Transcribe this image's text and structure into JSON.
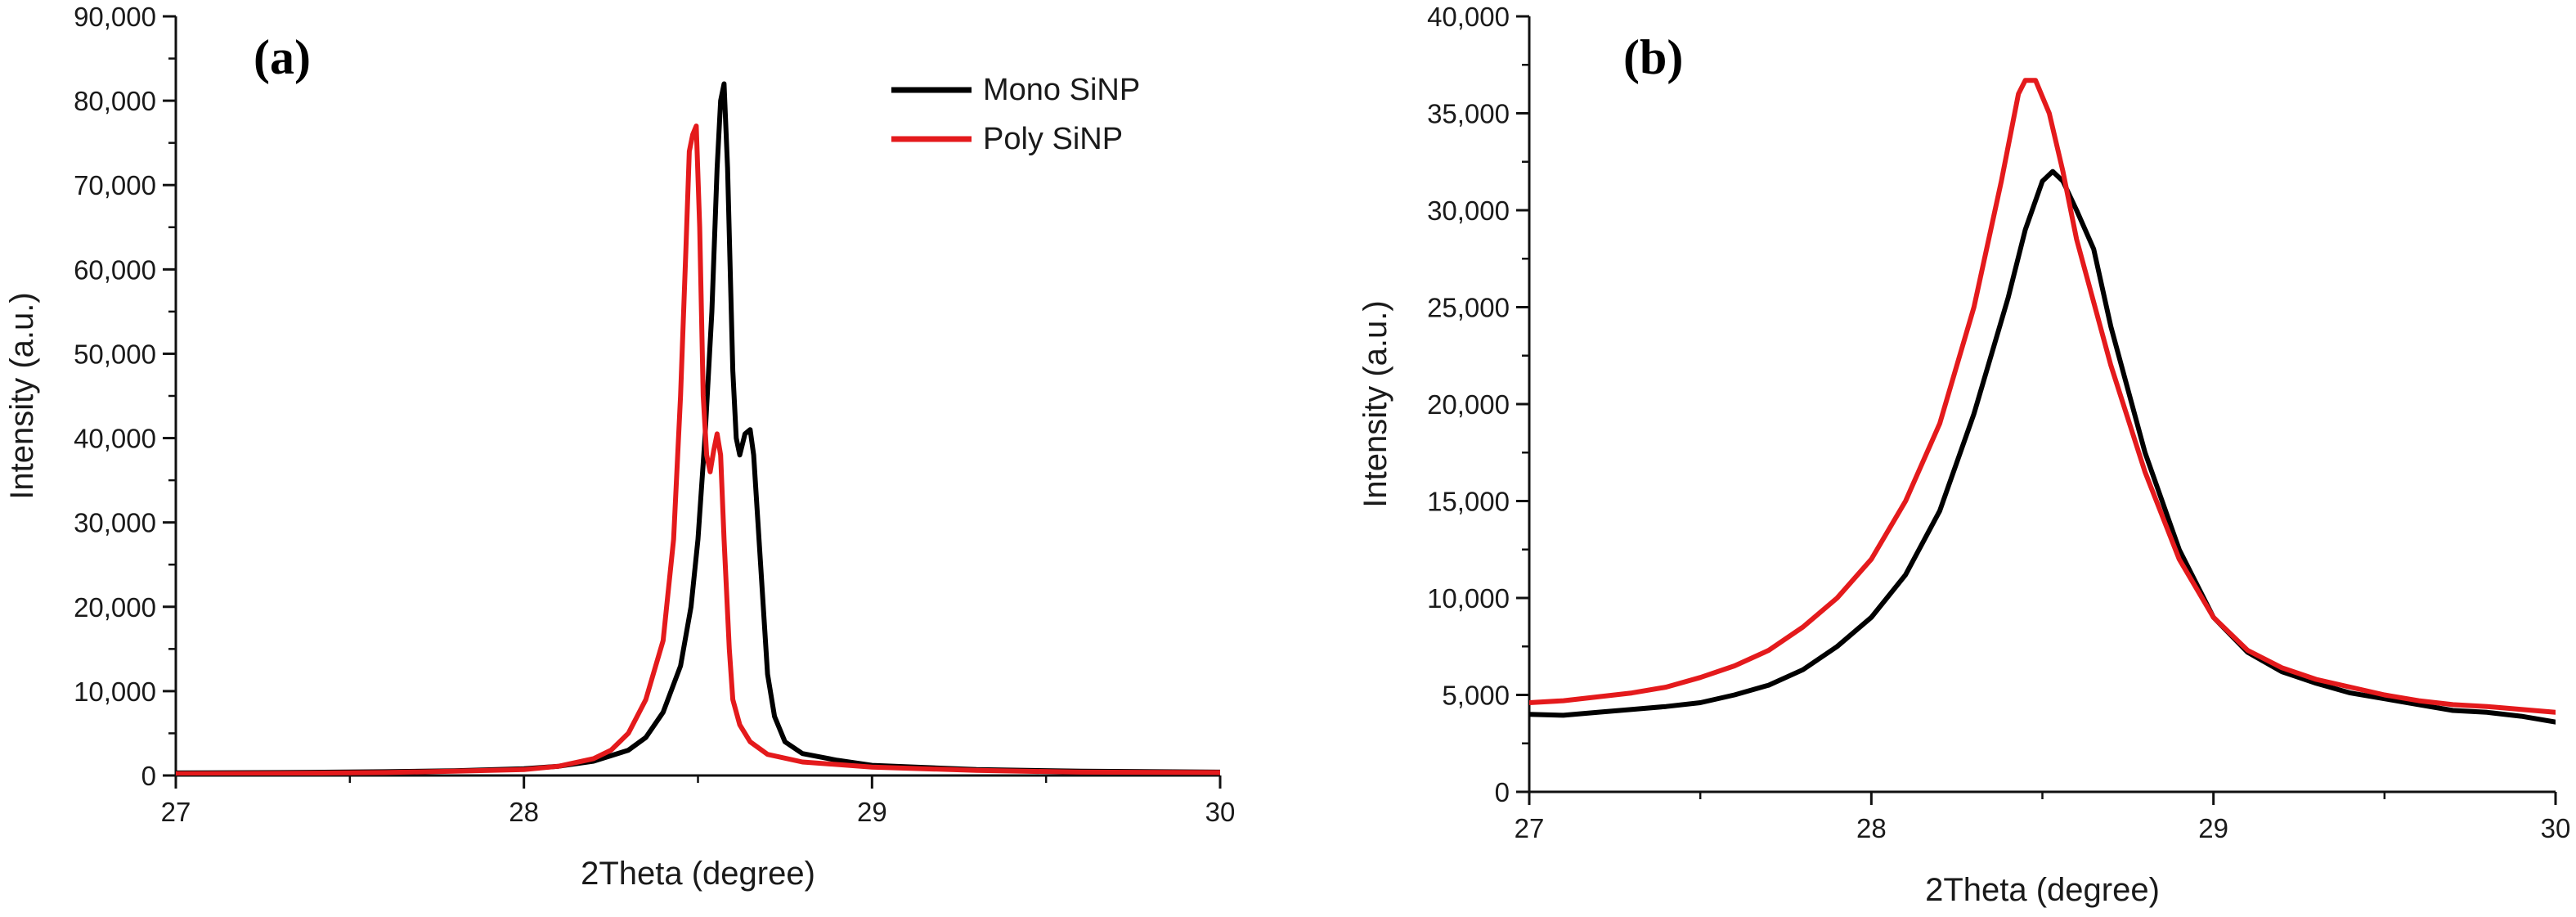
{
  "chart_data": [
    {
      "panel_label": "(a)",
      "type": "line",
      "xlabel": "2Theta (degree)",
      "ylabel": "Intensity (a.u.)",
      "xlim": [
        27,
        30
      ],
      "ylim": [
        0,
        90000
      ],
      "x_ticks": [
        "27",
        "28",
        "29",
        "30"
      ],
      "y_ticks": [
        "0",
        "10,000",
        "20,000",
        "30,000",
        "40,000",
        "50,000",
        "60,000",
        "70,000",
        "80,000",
        "90,000"
      ],
      "legend": {
        "placement": "top-right",
        "entries": [
          "Mono SiNP",
          "Poly SiNP"
        ]
      },
      "grid": false,
      "series": [
        {
          "name": "Mono SiNP",
          "color": "#000000",
          "points": [
            [
              27.0,
              300
            ],
            [
              27.3,
              350
            ],
            [
              27.6,
              450
            ],
            [
              27.8,
              550
            ],
            [
              28.0,
              800
            ],
            [
              28.1,
              1100
            ],
            [
              28.2,
              1700
            ],
            [
              28.3,
              3000
            ],
            [
              28.35,
              4500
            ],
            [
              28.4,
              7500
            ],
            [
              28.45,
              13000
            ],
            [
              28.48,
              20000
            ],
            [
              28.5,
              28000
            ],
            [
              28.52,
              40000
            ],
            [
              28.54,
              55000
            ],
            [
              28.555,
              72000
            ],
            [
              28.565,
              80000
            ],
            [
              28.575,
              82000
            ],
            [
              28.585,
              72000
            ],
            [
              28.6,
              48000
            ],
            [
              28.61,
              40000
            ],
            [
              28.62,
              38000
            ],
            [
              28.635,
              40500
            ],
            [
              28.65,
              41000
            ],
            [
              28.66,
              38000
            ],
            [
              28.68,
              25000
            ],
            [
              28.7,
              12000
            ],
            [
              28.72,
              7000
            ],
            [
              28.75,
              4000
            ],
            [
              28.8,
              2600
            ],
            [
              28.9,
              1800
            ],
            [
              29.0,
              1200
            ],
            [
              29.3,
              700
            ],
            [
              29.6,
              500
            ],
            [
              30.0,
              400
            ]
          ]
        },
        {
          "name": "Poly SiNP",
          "color": "#e41a1c",
          "points": [
            [
              27.0,
              200
            ],
            [
              27.3,
              250
            ],
            [
              27.6,
              350
            ],
            [
              27.8,
              500
            ],
            [
              28.0,
              700
            ],
            [
              28.1,
              1100
            ],
            [
              28.2,
              2000
            ],
            [
              28.25,
              3000
            ],
            [
              28.3,
              5000
            ],
            [
              28.35,
              9000
            ],
            [
              28.4,
              16000
            ],
            [
              28.43,
              28000
            ],
            [
              28.45,
              45000
            ],
            [
              28.465,
              62000
            ],
            [
              28.475,
              74000
            ],
            [
              28.485,
              76000
            ],
            [
              28.495,
              77000
            ],
            [
              28.505,
              65000
            ],
            [
              28.515,
              45000
            ],
            [
              28.525,
              38000
            ],
            [
              28.535,
              36000
            ],
            [
              28.545,
              38500
            ],
            [
              28.555,
              40500
            ],
            [
              28.565,
              38000
            ],
            [
              28.575,
              28000
            ],
            [
              28.59,
              15000
            ],
            [
              28.6,
              9000
            ],
            [
              28.62,
              6000
            ],
            [
              28.65,
              4000
            ],
            [
              28.7,
              2500
            ],
            [
              28.8,
              1600
            ],
            [
              29.0,
              1000
            ],
            [
              29.3,
              600
            ],
            [
              29.6,
              400
            ],
            [
              30.0,
              350
            ]
          ]
        }
      ]
    },
    {
      "panel_label": "(b)",
      "type": "line",
      "xlabel": "2Theta (degree)",
      "ylabel": "Intensity (a.u.)",
      "xlim": [
        27,
        30
      ],
      "ylim": [
        0,
        40000
      ],
      "x_ticks": [
        "27",
        "28",
        "29",
        "30"
      ],
      "y_ticks": [
        "0",
        "5,000",
        "10,000",
        "15,000",
        "20,000",
        "25,000",
        "30,000",
        "35,000",
        "40,000"
      ],
      "grid": false,
      "series": [
        {
          "color": "#000000",
          "points": [
            [
              27.0,
              4000
            ],
            [
              27.1,
              3950
            ],
            [
              27.2,
              4100
            ],
            [
              27.3,
              4250
            ],
            [
              27.4,
              4400
            ],
            [
              27.5,
              4600
            ],
            [
              27.6,
              5000
            ],
            [
              27.7,
              5500
            ],
            [
              27.8,
              6300
            ],
            [
              27.9,
              7500
            ],
            [
              28.0,
              9000
            ],
            [
              28.1,
              11200
            ],
            [
              28.2,
              14500
            ],
            [
              28.3,
              19500
            ],
            [
              28.4,
              25500
            ],
            [
              28.45,
              29000
            ],
            [
              28.5,
              31500
            ],
            [
              28.53,
              32000
            ],
            [
              28.56,
              31500
            ],
            [
              28.6,
              30000
            ],
            [
              28.65,
              28000
            ],
            [
              28.7,
              24000
            ],
            [
              28.8,
              17500
            ],
            [
              28.9,
              12500
            ],
            [
              29.0,
              9000
            ],
            [
              29.1,
              7200
            ],
            [
              29.2,
              6200
            ],
            [
              29.3,
              5600
            ],
            [
              29.4,
              5100
            ],
            [
              29.5,
              4800
            ],
            [
              29.6,
              4500
            ],
            [
              29.7,
              4200
            ],
            [
              29.8,
              4100
            ],
            [
              29.9,
              3900
            ],
            [
              30.0,
              3600
            ]
          ]
        },
        {
          "color": "#e41a1c",
          "points": [
            [
              27.0,
              4600
            ],
            [
              27.1,
              4700
            ],
            [
              27.2,
              4900
            ],
            [
              27.3,
              5100
            ],
            [
              27.4,
              5400
            ],
            [
              27.5,
              5900
            ],
            [
              27.6,
              6500
            ],
            [
              27.7,
              7300
            ],
            [
              27.8,
              8500
            ],
            [
              27.9,
              10000
            ],
            [
              28.0,
              12000
            ],
            [
              28.1,
              15000
            ],
            [
              28.2,
              19000
            ],
            [
              28.3,
              25000
            ],
            [
              28.38,
              31500
            ],
            [
              28.43,
              36000
            ],
            [
              28.45,
              36700
            ],
            [
              28.48,
              36700
            ],
            [
              28.52,
              35000
            ],
            [
              28.56,
              32000
            ],
            [
              28.6,
              28500
            ],
            [
              28.7,
              22000
            ],
            [
              28.8,
              16500
            ],
            [
              28.9,
              12000
            ],
            [
              29.0,
              9000
            ],
            [
              29.1,
              7300
            ],
            [
              29.2,
              6400
            ],
            [
              29.3,
              5800
            ],
            [
              29.4,
              5400
            ],
            [
              29.5,
              5000
            ],
            [
              29.6,
              4700
            ],
            [
              29.7,
              4500
            ],
            [
              29.8,
              4400
            ],
            [
              29.9,
              4250
            ],
            [
              30.0,
              4100
            ]
          ]
        }
      ]
    }
  ]
}
